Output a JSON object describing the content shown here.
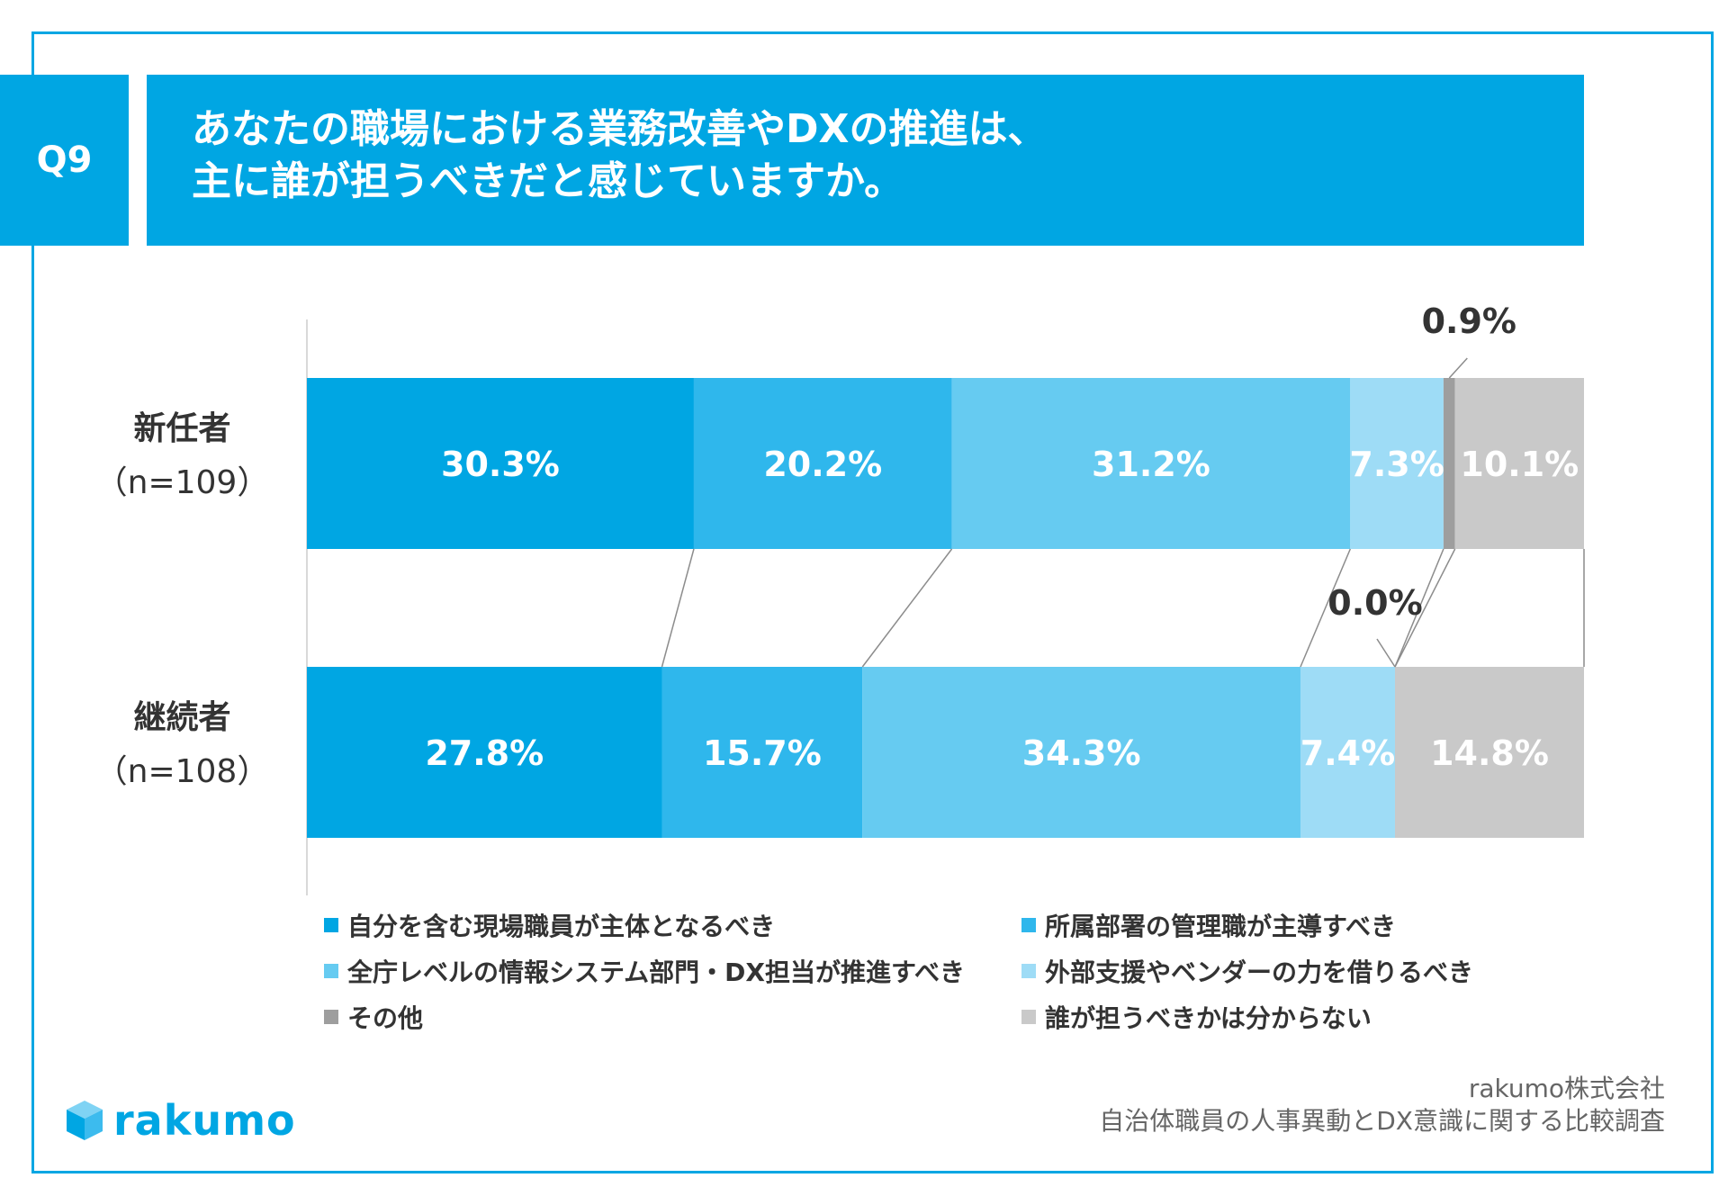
{
  "header": {
    "badge": "Q9",
    "title_line1": "あなたの職場における業務改善やDXの推進は、",
    "title_line2": "主に誰が担うべきだと感じていますか。"
  },
  "rows": [
    {
      "name": "新任者",
      "n": "（n=109）"
    },
    {
      "name": "継続者",
      "n": "（n=108）"
    }
  ],
  "legend": [
    {
      "label": "自分を含む現場職員が主体となるべき",
      "color": "#00a6e3"
    },
    {
      "label": "所属部署の管理職が主導すべき",
      "color": "#2fb7ec"
    },
    {
      "label": "全庁レベルの情報システム部門・DX担当が推進すべき",
      "color": "#66cbf1"
    },
    {
      "label": "外部支援やベンダーの力を借りるべき",
      "color": "#9edcf6"
    },
    {
      "label": "その他",
      "color": "#9e9e9e"
    },
    {
      "label": "誰が担うべきかは分からない",
      "color": "#c9c9c9"
    }
  ],
  "chart_data": {
    "type": "bar",
    "orientation": "horizontal",
    "stacked": "100%",
    "categories": [
      "新任者（n=109）",
      "継続者（n=108）"
    ],
    "series": [
      {
        "name": "自分を含む現場職員が主体となるべき",
        "values": [
          30.3,
          27.8
        ],
        "color": "#00a6e3"
      },
      {
        "name": "所属部署の管理職が主導すべき",
        "values": [
          20.2,
          15.7
        ],
        "color": "#2fb7ec"
      },
      {
        "name": "全庁レベルの情報システム部門・DX担当が推進すべき",
        "values": [
          31.2,
          34.3
        ],
        "color": "#66cbf1"
      },
      {
        "name": "外部支援やベンダーの力を借りるべき",
        "values": [
          7.3,
          7.4
        ],
        "color": "#9edcf6"
      },
      {
        "name": "その他",
        "values": [
          0.9,
          0.0
        ],
        "color": "#9e9e9e"
      },
      {
        "name": "誰が担うべきかは分からない",
        "values": [
          10.1,
          14.8
        ],
        "color": "#c9c9c9"
      }
    ],
    "labels": [
      [
        "30.3%",
        "20.2%",
        "31.2%",
        "7.3%",
        "0.9%",
        "10.1%"
      ],
      [
        "27.8%",
        "15.7%",
        "34.3%",
        "7.4%",
        "0.0%",
        "14.8%"
      ]
    ],
    "unit": "%",
    "legend_position": "bottom",
    "series_lines": true
  },
  "footer": {
    "company": "rakumo株式会社",
    "survey": "自治体職員の人事異動とDX意識に関する比較調査",
    "logo": "rakumo"
  }
}
